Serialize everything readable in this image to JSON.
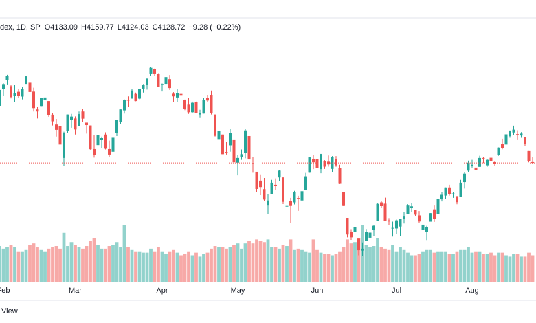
{
  "chart_data": {
    "type": "candlestick",
    "title": "dex, 1D, SP",
    "ohlc_labels": [
      "O",
      "H",
      "L",
      "C"
    ],
    "change_label": "−9.28 (−0.22%)",
    "up_color": "#26a69a",
    "down_color": "#ef5350",
    "ylim": [
      3500,
      4900
    ],
    "volume_lim": [
      0,
      20
    ],
    "categories": [
      null,
      "Feb",
      null,
      null,
      null,
      null,
      null,
      null,
      null,
      null,
      null,
      null,
      null,
      null,
      null,
      null,
      null,
      null,
      null,
      null,
      "Mar",
      null,
      null,
      null,
      null,
      null,
      null,
      null,
      null,
      null,
      null,
      null,
      null,
      null,
      null,
      null,
      null,
      null,
      null,
      null,
      null,
      null,
      null,
      "Apr",
      null,
      null,
      null,
      null,
      null,
      null,
      null,
      null,
      null,
      null,
      null,
      null,
      null,
      null,
      null,
      null,
      null,
      null,
      null,
      "May",
      null,
      null,
      null,
      null,
      null,
      null,
      null,
      null,
      null,
      null,
      null,
      null,
      null,
      null,
      null,
      null,
      null,
      null,
      null,
      null,
      "Jun",
      null,
      null,
      null,
      null,
      null,
      null,
      null,
      null,
      null,
      null,
      null,
      null,
      null,
      null,
      null,
      null,
      null,
      null,
      null,
      null,
      "Jul",
      null,
      null,
      null,
      null,
      null,
      null,
      null,
      null,
      null,
      null,
      null,
      null,
      null,
      null,
      null,
      null,
      null,
      null,
      null,
      "Aug",
      null,
      null,
      null,
      null,
      null,
      null,
      null,
      null,
      null,
      null,
      null,
      null,
      null,
      null,
      null,
      null
    ],
    "open": [
      4431,
      4519,
      4566,
      4535,
      4482,
      4505,
      4480,
      4547,
      4553,
      4506,
      4412,
      4430,
      4463,
      4456,
      4384,
      4332,
      4324,
      4155,
      4299,
      4355,
      4364,
      4323,
      4401,
      4342,
      4327,
      4202,
      4223,
      4252,
      4279,
      4202,
      4188,
      4289,
      4345,
      4407,
      4462,
      4469,
      4494,
      4469,
      4522,
      4541,
      4602,
      4624,
      4599,
      4540,
      4547,
      4572,
      4495,
      4475,
      4494,
      4462,
      4437,
      4397,
      4450,
      4385,
      4390,
      4473,
      4489,
      4385,
      4255,
      4279,
      4187,
      4222,
      4253,
      4130,
      4160,
      4181,
      4271,
      4128,
      4082,
      4035,
      3990,
      3903,
      3963,
      4013,
      4052,
      4052,
      3900,
      3927,
      3920,
      3943,
      3930,
      3985,
      4077,
      4151,
      4150,
      4096,
      4138,
      4135,
      4097,
      4148,
      4101,
      3974,
      3838,
      3764,
      3764,
      3728,
      3665,
      3715,
      3733,
      3775,
      3821,
      3920,
      3913,
      3825,
      3785,
      3782,
      3792,
      3831,
      3858,
      3889,
      3880,
      3851,
      3776,
      3764,
      3818,
      3883,
      3860,
      3936,
      3956,
      3999,
      3966,
      3953,
      3951,
      4027,
      4088,
      4113,
      4104,
      4108,
      4155,
      4116,
      4156,
      4133,
      4171,
      4228,
      4226,
      4270,
      4290,
      4281,
      4274,
      4266,
      4195,
      4133.09
    ],
    "high": [
      4516,
      4550,
      4595,
      4542,
      4540,
      4522,
      4531,
      4590,
      4589,
      4527,
      4426,
      4472,
      4490,
      4456,
      4394,
      4362,
      4325,
      4294,
      4385,
      4388,
      4375,
      4401,
      4416,
      4342,
      4327,
      4277,
      4299,
      4268,
      4291,
      4247,
      4271,
      4358,
      4412,
      4465,
      4481,
      4522,
      4501,
      4521,
      4546,
      4575,
      4637,
      4628,
      4603,
      4549,
      4583,
      4594,
      4503,
      4521,
      4521,
      4464,
      4471,
      4453,
      4453,
      4410,
      4471,
      4489,
      4512,
      4385,
      4299,
      4279,
      4240,
      4308,
      4270,
      4169,
      4200,
      4308,
      4271,
      4158,
      4082,
      4068,
      4049,
      3965,
      4039,
      4047,
      4089,
      4052,
      3945,
      3944,
      3981,
      3955,
      3999,
      4076,
      4158,
      4169,
      4166,
      4177,
      4143,
      4168,
      4165,
      4165,
      4119,
      3974,
      3838,
      3778,
      3838,
      3728,
      3708,
      3779,
      3801,
      3802,
      3914,
      3928,
      3945,
      3837,
      3818,
      3829,
      3832,
      3871,
      3910,
      3918,
      3880,
      3874,
      3839,
      3796,
      3863,
      3903,
      3939,
      3975,
      3999,
      4013,
      3975,
      3953,
      4039,
      4078,
      4141,
      4145,
      4140,
      4167,
      4162,
      4151,
      4187,
      4137,
      4211,
      4257,
      4281,
      4301,
      4326,
      4302,
      4292,
      4266,
      4195,
      4159.77
    ],
    "low": [
      4414,
      4484,
      4544,
      4470,
      4451,
      4471,
      4465,
      4547,
      4477,
      4401,
      4364,
      4429,
      4430,
      4373,
      4327,
      4268,
      4222,
      4114,
      4287,
      4315,
      4279,
      4322,
      4345,
      4284,
      4199,
      4157,
      4223,
      4209,
      4200,
      4161,
      4187,
      4271,
      4335,
      4390,
      4424,
      4469,
      4455,
      4466,
      4501,
      4517,
      4589,
      4589,
      4530,
      4507,
      4539,
      4515,
      4450,
      4450,
      4483,
      4408,
      4388,
      4395,
      4392,
      4370,
      4390,
      4452,
      4385,
      4268,
      4200,
      4175,
      4173,
      4188,
      4129,
      4063,
      4145,
      4153,
      4107,
      4077,
      3976,
      3958,
      3928,
      3859,
      3963,
      3984,
      4034,
      3911,
      3877,
      3810,
      3909,
      3875,
      3926,
      3985,
      4077,
      4096,
      4073,
      4074,
      4097,
      4109,
      4080,
      4108,
      4017,
      3900,
      3735,
      3722,
      3723,
      3640,
      3636,
      3715,
      3717,
      3743,
      3821,
      3889,
      3820,
      3800,
      3739,
      3752,
      3743,
      3808,
      3858,
      3870,
      3847,
      3811,
      3765,
      3721,
      3818,
      3817,
      3860,
      3925,
      3937,
      3956,
      3944,
      3910,
      3951,
      3993,
      4080,
      4104,
      4080,
      4108,
      4128,
      4108,
      4128,
      4113,
      4167,
      4201,
      4216,
      4262,
      4277,
      4253,
      4262,
      4219,
      4132,
      4124.03
    ],
    "close": [
      4515,
      4546,
      4589,
      4477,
      4500,
      4483,
      4521,
      4587,
      4504,
      4419,
      4401,
      4472,
      4475,
      4380,
      4349,
      4304,
      4226,
      4288,
      4385,
      4374,
      4306,
      4387,
      4363,
      4329,
      4201,
      4171,
      4278,
      4260,
      4204,
      4173,
      4262,
      4357,
      4412,
      4463,
      4461,
      4512,
      4456,
      4520,
      4543,
      4575,
      4632,
      4602,
      4530,
      4546,
      4583,
      4525,
      4481,
      4500,
      4488,
      4413,
      4397,
      4447,
      4392,
      4391,
      4463,
      4459,
      4394,
      4272,
      4297,
      4175,
      4184,
      4288,
      4132,
      4155,
      4175,
      4301,
      4147,
      4123,
      3991,
      4001,
      3935,
      3930,
      4024,
      4008,
      4088,
      3923,
      3901,
      3901,
      3974,
      3941,
      3979,
      4058,
      4158,
      4132,
      4101,
      4176,
      4109,
      4121,
      4161,
      4116,
      4018,
      3901,
      3750,
      3735,
      3790,
      3667,
      3675,
      3765,
      3760,
      3796,
      3912,
      3900,
      3821,
      3819,
      3785,
      3825,
      3831,
      3845,
      3903,
      3899,
      3855,
      3819,
      3802,
      3790,
      3863,
      3831,
      3937,
      3960,
      3999,
      3962,
      3967,
      3921,
      4024,
      4072,
      4130,
      4119,
      4091,
      4155,
      4152,
      4145,
      4140,
      4122,
      4210,
      4207,
      4280,
      4297,
      4305,
      4275,
      4284,
      4228,
      4138,
      4128.72
    ],
    "volume": [
      2.7,
      2.5,
      2.6,
      2.8,
      2.6,
      2.3,
      2.3,
      2.4,
      2.8,
      2.9,
      2.6,
      2.4,
      2.3,
      2.5,
      2.6,
      2.7,
      2.5,
      3.7,
      2.7,
      3.0,
      2.8,
      2.6,
      2.5,
      2.7,
      3.1,
      3.3,
      2.8,
      2.5,
      2.5,
      2.7,
      2.8,
      3.0,
      2.6,
      4.3,
      2.6,
      2.4,
      2.3,
      2.3,
      2.2,
      2.2,
      2.5,
      2.3,
      2.6,
      2.3,
      2.1,
      2.3,
      2.4,
      2.2,
      2.0,
      2.1,
      2.3,
      2.0,
      2.2,
      1.9,
      2.1,
      2.2,
      2.5,
      2.7,
      2.6,
      2.6,
      2.5,
      2.6,
      2.8,
      2.9,
      2.5,
      2.9,
      3.1,
      2.9,
      3.2,
      3.1,
      3.0,
      3.2,
      2.6,
      2.6,
      2.5,
      2.8,
      2.7,
      3.2,
      2.4,
      2.5,
      2.4,
      2.3,
      2.2,
      3.2,
      2.4,
      2.2,
      2.1,
      2.1,
      2.0,
      2.1,
      2.3,
      2.6,
      3.2,
      2.9,
      3.0,
      3.3,
      4.3,
      2.8,
      2.6,
      2.7,
      3.3,
      2.6,
      2.5,
      2.4,
      2.8,
      2.3,
      2.6,
      2.4,
      2.2,
      2.0,
      2.0,
      2.1,
      2.3,
      2.4,
      2.4,
      2.2,
      2.3,
      2.3,
      2.3,
      2.1,
      2.1,
      2.3,
      2.4,
      2.4,
      2.6,
      2.2,
      2.3,
      2.3,
      2.1,
      2.1,
      2.2,
      2.0,
      2.2,
      2.2,
      2.0,
      1.9,
      2.1,
      2.1,
      1.9,
      1.9,
      2.2,
      2.0
    ]
  },
  "footer": "View"
}
